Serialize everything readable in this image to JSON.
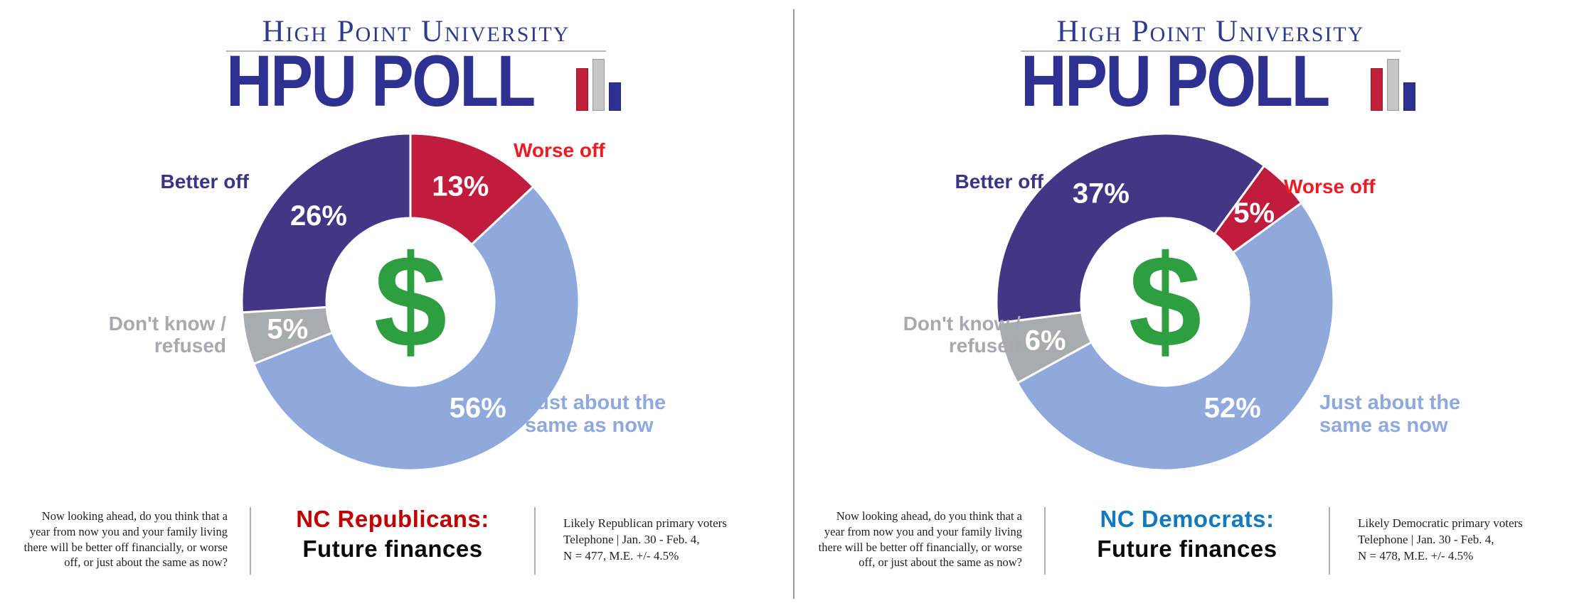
{
  "logo": {
    "university_name": "High Point University",
    "poll_name": "HPU POLL",
    "bar_icon_colors": [
      "#c1203c",
      "#c6c6c6",
      "#2e3192"
    ]
  },
  "colors": {
    "navy": "#2e3192",
    "slice_purple": "#443687",
    "slice_red": "#c01d3e",
    "slice_light_blue": "#8fa9dc",
    "slice_gray": "#a9abae",
    "dollar_green": "#2f9e41",
    "worse_label_red": "#ee1b24",
    "better_label_purple": "#3b3486",
    "republican_red": "#c00000",
    "democrat_blue": "#147abf"
  },
  "panels": [
    {
      "question_lines": [
        "Now looking ahead, do you think that a",
        "year from now you and your family living",
        "there will be better off financially, or worse",
        "off, or just about the same as now?"
      ],
      "title_line1": "NC Republicans:",
      "title_line2": "Future finances",
      "methodology_lines": [
        "Likely Republican primary voters",
        "Telephone | Jan. 30 - Feb. 4,",
        "N = 477, M.E. +/- 4.5%"
      ]
    },
    {
      "question_lines": [
        "Now looking ahead, do you think that a",
        "year from now you and your family living",
        "there will be better off financially, or worse",
        "off, or just about the same as now?"
      ],
      "title_line1": "NC Democrats:",
      "title_line2": "Future finances",
      "methodology_lines": [
        "Likely Democratic primary voters",
        "Telephone | Jan. 30 - Feb. 4,",
        "N = 478, M.E. +/- 4.5%"
      ]
    }
  ],
  "chart_data": [
    {
      "type": "pie",
      "subtype": "donut",
      "title": "NC Republicans: Future finances",
      "center_symbol": "$",
      "center_symbol_color": "#2f9e41",
      "start_angle_deg": 0,
      "legend_position": "around-chart",
      "segments": [
        {
          "label": "Worse off",
          "value": 13,
          "color": "#c01d3e"
        },
        {
          "label": "Just about the same as now",
          "value": 56,
          "color": "#8fa9dc"
        },
        {
          "label": "Don't know / refused",
          "value": 5,
          "color": "#a9abae"
        },
        {
          "label": "Better off",
          "value": 26,
          "color": "#443687"
        }
      ],
      "callouts": {
        "better": "Better off",
        "worse": "Worse off",
        "dontknow": [
          "Don't know /",
          "refused"
        ],
        "same": [
          "Just about the",
          "same as now"
        ]
      }
    },
    {
      "type": "pie",
      "subtype": "donut",
      "title": "NC Democrats: Future finances",
      "center_symbol": "$",
      "center_symbol_color": "#2f9e41",
      "start_angle_deg": 36,
      "legend_position": "around-chart",
      "segments": [
        {
          "label": "Worse off",
          "value": 5,
          "color": "#c01d3e"
        },
        {
          "label": "Just about the same as now",
          "value": 52,
          "color": "#8fa9dc"
        },
        {
          "label": "Don't know / refused",
          "value": 6,
          "color": "#a9abae"
        },
        {
          "label": "Better off",
          "value": 37,
          "color": "#443687"
        }
      ],
      "callouts": {
        "better": "Better off",
        "worse": "Worse off",
        "dontknow": [
          "Don't know /",
          "refused"
        ],
        "same": [
          "Just about the",
          "same as now"
        ]
      }
    }
  ]
}
